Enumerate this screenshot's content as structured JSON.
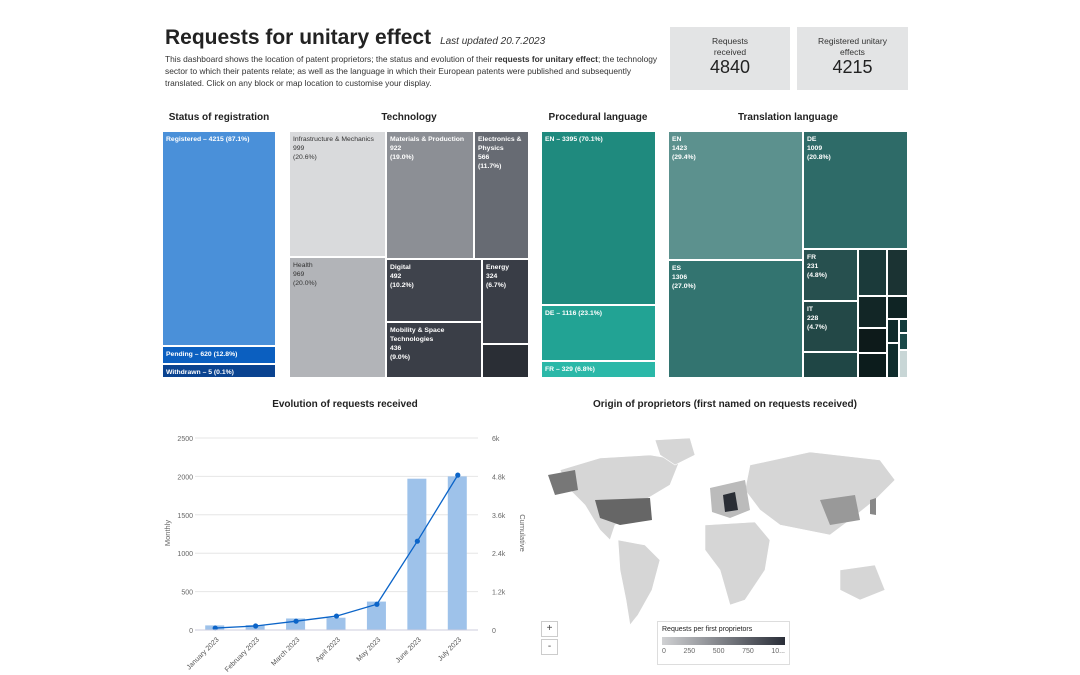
{
  "header": {
    "title": "Requests for unitary effect",
    "last_updated": "Last updated 20.7.2023",
    "desc_1": "This dashboard shows the location of patent proprietors; the status and evolution of their ",
    "desc_bold": "requests for unitary effect",
    "desc_2": "; the technology sector to which their patents relate; as well as the language in which their European patents were published and subsequently translated. Click on any block or map location to customise your display."
  },
  "kpis": [
    {
      "label": "Requests received",
      "value": "4840"
    },
    {
      "label": "Registered unitary effects",
      "value": "4215"
    }
  ],
  "sections": {
    "status": "Status of registration",
    "technology": "Technology",
    "procedural": "Procedural language",
    "translation": "Translation language",
    "evolution": "Evolution of requests received",
    "origin": "Origin of proprietors (first named on requests received)"
  },
  "status": [
    {
      "label": "Registered – 4215 (87.1%)",
      "color": "#4a90d9"
    },
    {
      "label": "Pending – 620 (12.8%)",
      "color": "#0b5fc0"
    },
    {
      "label": "Withdrawn – 5 (0.1%)",
      "color": "#0a4390"
    }
  ],
  "technology": [
    {
      "name": "Infrastructure & Mechanics",
      "value": "999",
      "pct": "(20.6%)",
      "color": "#d9dadc"
    },
    {
      "name": "Health",
      "value": "969",
      "pct": "(20.0%)",
      "color": "#b2b4b8"
    },
    {
      "name": "Materials & Production",
      "value": "922",
      "pct": "(19.0%)",
      "color": "#8c8f95"
    },
    {
      "name": "Electronics & Physics",
      "value": "566",
      "pct": "(11.7%)",
      "color": "#676b73"
    },
    {
      "name": "Digital",
      "value": "492",
      "pct": "(10.2%)",
      "color": "#3f434c"
    },
    {
      "name": "Mobility & Space Technologies",
      "value": "436",
      "pct": "(9.0%)",
      "color": "#3a3e47"
    },
    {
      "name": "Energy",
      "value": "324",
      "pct": "(6.7%)",
      "color": "#393d46"
    },
    {
      "name": "",
      "value": "",
      "pct": "",
      "color": "#2a2e35"
    }
  ],
  "procedural": [
    {
      "label": "EN – 3395 (70.1%)",
      "color": "#1f8a7e"
    },
    {
      "label": "DE – 1116 (23.1%)",
      "color": "#22a394"
    },
    {
      "label": "FR – 329 (6.8%)",
      "color": "#2bb8a8"
    }
  ],
  "translation": [
    {
      "name": "EN",
      "value": "1423",
      "pct": "(29.4%)",
      "color": "#5c918e"
    },
    {
      "name": "ES",
      "value": "1306",
      "pct": "(27.0%)",
      "color": "#337470"
    },
    {
      "name": "DE",
      "value": "1009",
      "pct": "(20.8%)",
      "color": "#2e6b68"
    },
    {
      "name": "FR",
      "value": "231",
      "pct": "(4.8%)",
      "color": "#27504f"
    },
    {
      "name": "IT",
      "value": "228",
      "pct": "(4.7%)",
      "color": "#234847"
    }
  ],
  "chart_data": {
    "type": "bar+line",
    "title": "Evolution of requests received",
    "categories": [
      "January 2023",
      "February 2023",
      "March 2023",
      "April 2023",
      "May 2023",
      "June 2023",
      "July 2023"
    ],
    "series": [
      {
        "name": "Monthly",
        "type": "bar",
        "axis": "left",
        "values": [
          60,
          65,
          150,
          160,
          370,
          1970,
          2000
        ],
        "color": "#9ec2ea"
      },
      {
        "name": "Cumulative",
        "type": "line",
        "axis": "right",
        "values": [
          60,
          125,
          275,
          435,
          805,
          2775,
          4840
        ],
        "color": "#0b64c8"
      }
    ],
    "ylabel": "Monthly",
    "y2label": "Cumulative",
    "ylim": [
      0,
      2500
    ],
    "y2lim": [
      0,
      6000
    ],
    "yticks": [
      "0",
      "500",
      "1000",
      "1500",
      "2000",
      "2500"
    ],
    "y2ticks": [
      "0",
      "1.2k",
      "2.4k",
      "3.6k",
      "4.8k",
      "6k"
    ],
    "grid": true
  },
  "map": {
    "zoom_in": "+",
    "zoom_out": "-",
    "legend_title": "Requests per first proprietors",
    "legend_ticks": [
      "0",
      "250",
      "500",
      "750",
      "10..."
    ]
  }
}
